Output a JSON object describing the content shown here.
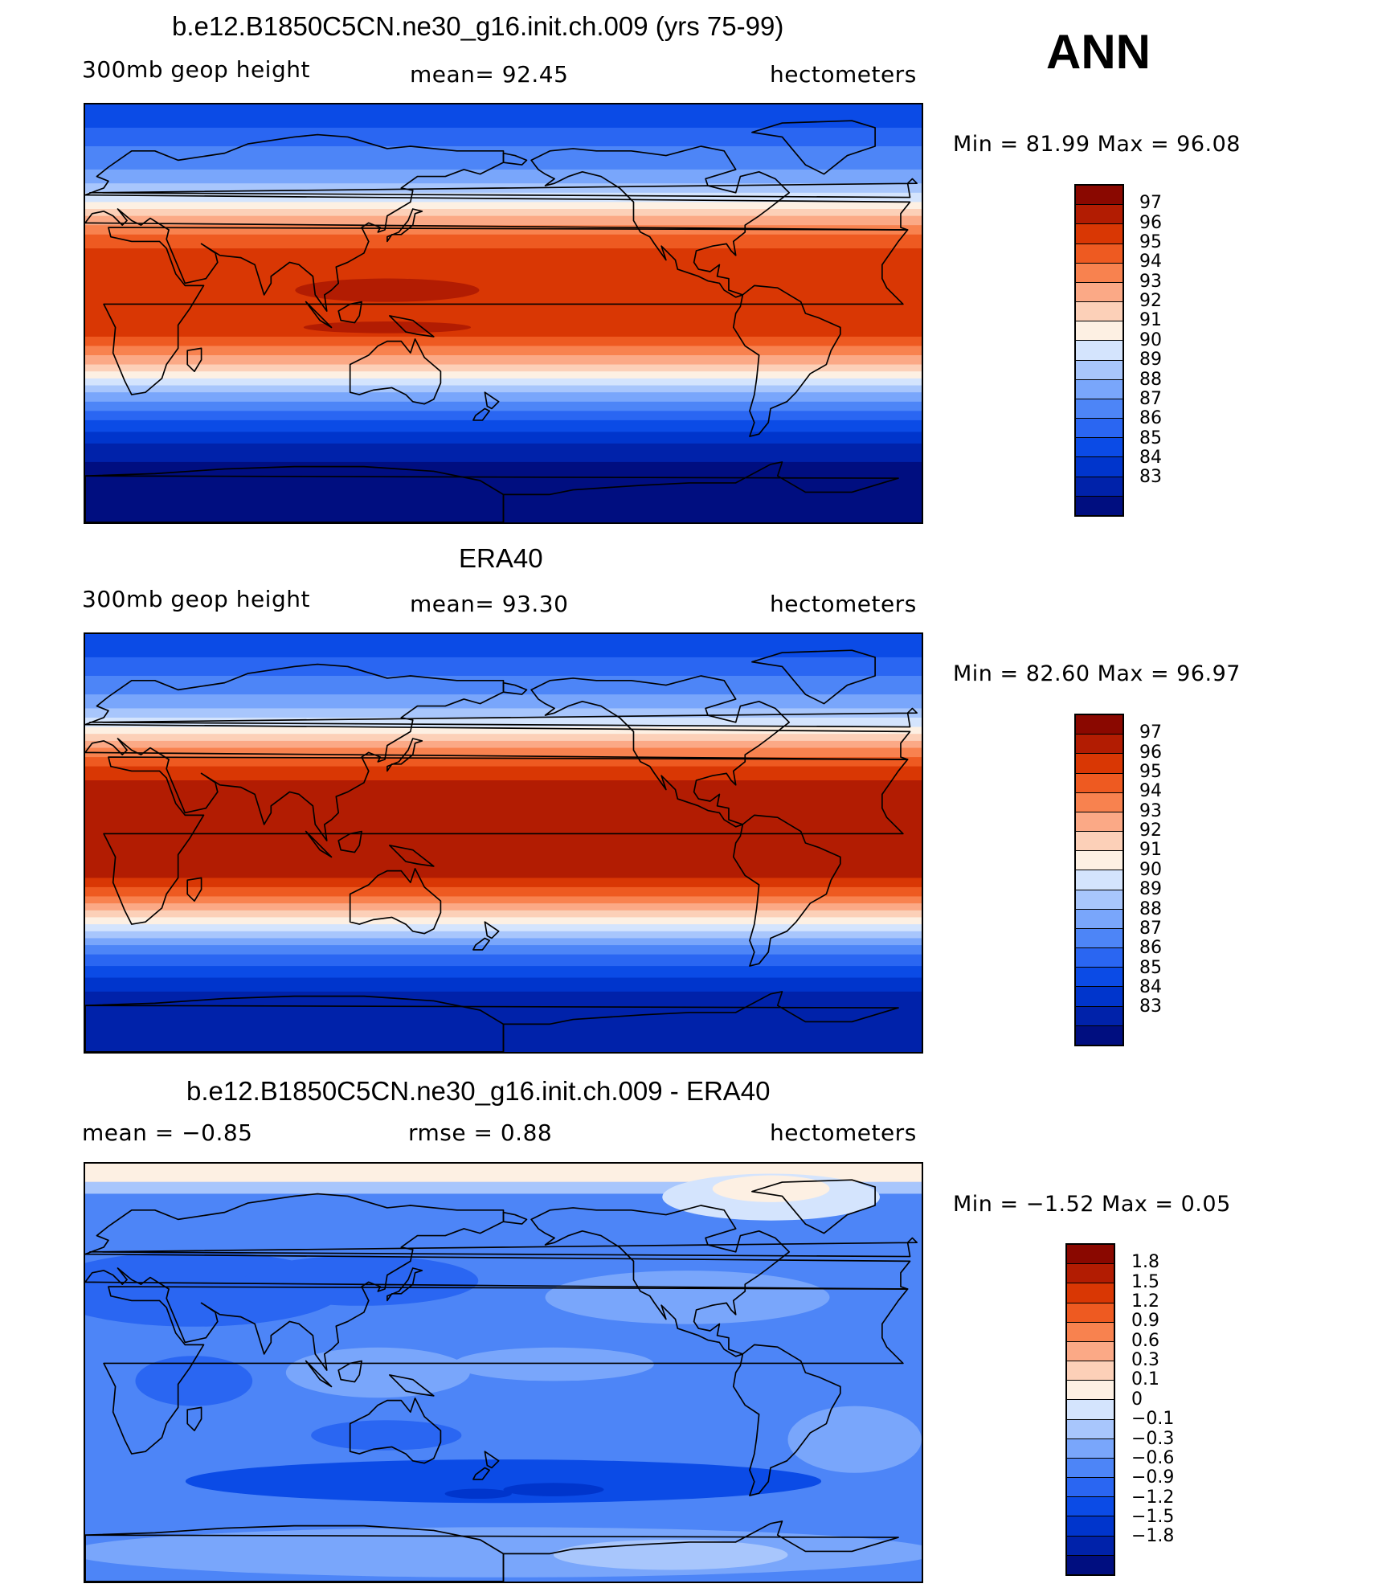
{
  "season": "ANN",
  "palette": [
    "#000e80",
    "#0022aa",
    "#0035cc",
    "#0b4be6",
    "#2a66f2",
    "#4d85f7",
    "#79a6fb",
    "#a8c6fc",
    "#d4e4fd",
    "#fdf0e3",
    "#fcd0b8",
    "#fba986",
    "#f8824f",
    "#ee5a21",
    "#d93704",
    "#b21c02",
    "#8a0800"
  ],
  "panels": [
    {
      "title": "b.e12.B1850C5CN.ne30_g16.init.ch.009 (yrs 75-99)",
      "left_label": "300mb geop height",
      "center_label": "mean=   92.45",
      "units": "hectometers",
      "min_max": "Min =   81.99 Max =   96.08",
      "colorbar_labels": [
        "97",
        "96",
        "95",
        "94",
        "93",
        "92",
        "91",
        "90",
        "89",
        "88",
        "87",
        "86",
        "85",
        "84",
        "83"
      ]
    },
    {
      "title": "ERA40",
      "left_label": "300mb geop height",
      "center_label": "mean=   93.30",
      "units": "hectometers",
      "min_max": "Min =   82.60 Max =   96.97",
      "colorbar_labels": [
        "97",
        "96",
        "95",
        "94",
        "93",
        "92",
        "91",
        "90",
        "89",
        "88",
        "87",
        "86",
        "85",
        "84",
        "83"
      ]
    },
    {
      "title": "b.e12.B1850C5CN.ne30_g16.init.ch.009 - ERA40",
      "left_label": "mean =   −0.85",
      "center_label": "rmse =    0.88",
      "units": "hectometers",
      "min_max": "Min =   −1.52 Max =     0.05",
      "colorbar_labels": [
        "1.8",
        "1.5",
        "1.2",
        "0.9",
        "0.6",
        "0.3",
        "0.1",
        "0",
        "−0.1",
        "−0.3",
        "−0.6",
        "−0.9",
        "−1.2",
        "−1.5",
        "−1.8"
      ]
    }
  ]
}
